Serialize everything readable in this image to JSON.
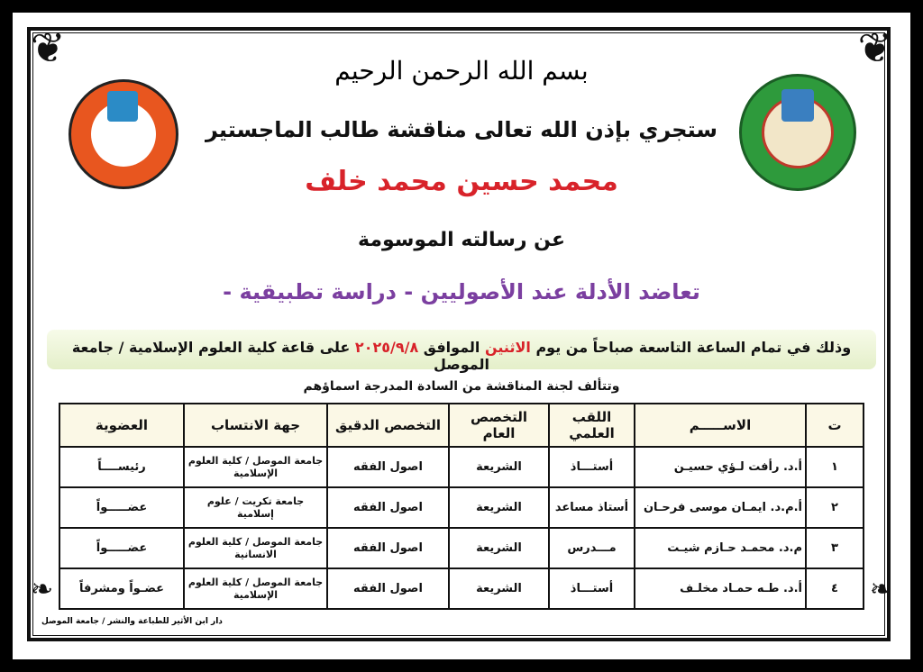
{
  "header": {
    "basmala": "بسم الله الرحمن الرحيم",
    "intro": "ستجري بإذن الله تعالى مناقشة طالب الماجستير",
    "student_name": "محمد حسين محمد خلف",
    "thesis_intro": "عن رسالته الموسومة",
    "thesis_title": "تعاضد الأدلة عند الأصوليين - دراسة تطبيقية -"
  },
  "logos": {
    "left": "University of Mosul",
    "right": "كلية العلوم الإسلامية"
  },
  "schedule": {
    "prefix": "وذلك في تمام الساعة التاسعة صباحاً من يوم",
    "day": "الاثنين",
    "mid": "الموافق",
    "date": "٢٠٢٥/٩/٨",
    "suffix": "على قاعة كلية العلوم الإسلامية / جامعة الموصل"
  },
  "committee_intro": "وتتألف لجنة المناقشة من السادة المدرجة اسماؤهم",
  "table": {
    "headers": [
      "ت",
      "الاســـــم",
      "اللقب العلمي",
      "التخصص العام",
      "التخصص الدقيق",
      "جهة الانتساب",
      "العضوية"
    ],
    "rows": [
      [
        "١",
        "أ.د. رأفت لـؤي حسيـن",
        "أستـــاذ",
        "الشريعة",
        "اصول الفقه",
        "جامعة الموصل / كلية العلوم الإسلامية",
        "رئيســــاً"
      ],
      [
        "٢",
        "أ.م.د. ايمـان موسى فرحـان",
        "أستاذ مساعد",
        "الشريعة",
        "اصول الفقه",
        "جامعة تكريت / علوم إسلامية",
        "عضـــــواً"
      ],
      [
        "٣",
        "م.د. محمـد حـازم شيـت",
        "مـــدرس",
        "الشريعة",
        "اصول الفقه",
        "جامعة الموصل / كلية العلوم الانسانية",
        "عضـــــواً"
      ],
      [
        "٤",
        "أ.د. طـه حمـاد مخلـف",
        "أستـــاذ",
        "الشريعة",
        "اصول الفقه",
        "جامعة الموصل / كلية العلوم الإسلامية",
        "عضـواً ومشرفاً"
      ]
    ]
  },
  "footer": "دار ابن الأثير للطباعة والنشر / جامعة الموصل",
  "colors": {
    "name": "#d8232a",
    "title": "#7b3fa0",
    "date": "#d8232a",
    "band": "#e8f1d2"
  }
}
